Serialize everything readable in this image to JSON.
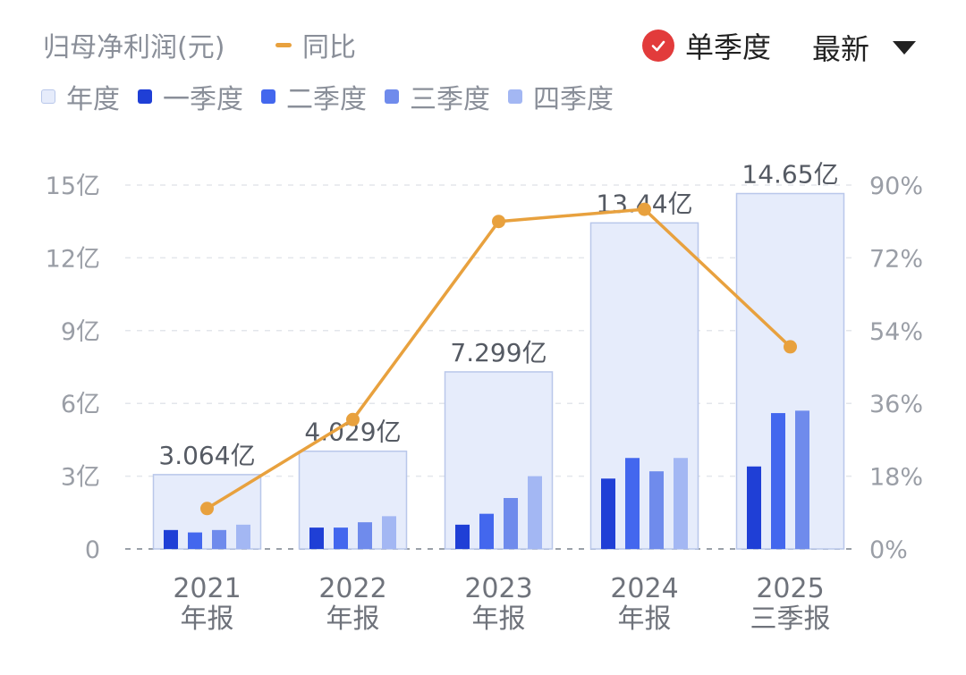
{
  "header": {
    "title": "归母净利润(元)",
    "yoy_label": "同比",
    "single_quarter_label": "单季度",
    "latest_label": "最新"
  },
  "colors": {
    "annual_fill": "#e6ecfb",
    "annual_stroke": "#b9c7ea",
    "q1": "#1f3fd6",
    "q2": "#4367ee",
    "q3": "#6f8bec",
    "q4": "#a3b7f3",
    "yoy_line": "#e8a13e",
    "check": "#e23b3b"
  },
  "chart_data": {
    "type": "bar",
    "categories": [
      [
        "2021",
        "年报"
      ],
      [
        "2022",
        "年报"
      ],
      [
        "2023",
        "年报"
      ],
      [
        "2024",
        "年报"
      ],
      [
        "2025",
        "三季报"
      ]
    ],
    "annual_labels": [
      "3.064亿",
      "4.029亿",
      "7.299亿",
      "13.44亿",
      "14.65亿"
    ],
    "series": [
      {
        "name": "年度",
        "values": [
          3.064,
          4.029,
          7.299,
          13.44,
          14.65
        ]
      },
      {
        "name": "一季度",
        "values": [
          0.78,
          0.88,
          1.0,
          2.9,
          3.4
        ]
      },
      {
        "name": "二季度",
        "values": [
          0.68,
          0.88,
          1.45,
          3.75,
          5.6
        ]
      },
      {
        "name": "三季度",
        "values": [
          0.78,
          1.1,
          2.1,
          3.2,
          5.7
        ]
      },
      {
        "name": "四季度",
        "values": [
          1.0,
          1.35,
          3.0,
          3.75,
          null
        ]
      }
    ],
    "yoy": {
      "name": "同比",
      "values": [
        10,
        32,
        81,
        84,
        50
      ]
    },
    "y_left": {
      "ticks": [
        "0",
        "3亿",
        "6亿",
        "9亿",
        "12亿",
        "15亿"
      ],
      "values": [
        0,
        3,
        6,
        9,
        12,
        15
      ],
      "range": [
        0,
        15
      ]
    },
    "y_right": {
      "ticks": [
        "0%",
        "18%",
        "36%",
        "54%",
        "72%",
        "90%"
      ],
      "values": [
        0,
        18,
        36,
        54,
        72,
        90
      ],
      "range": [
        0,
        90
      ]
    },
    "grid": true,
    "legend": "top-left"
  }
}
